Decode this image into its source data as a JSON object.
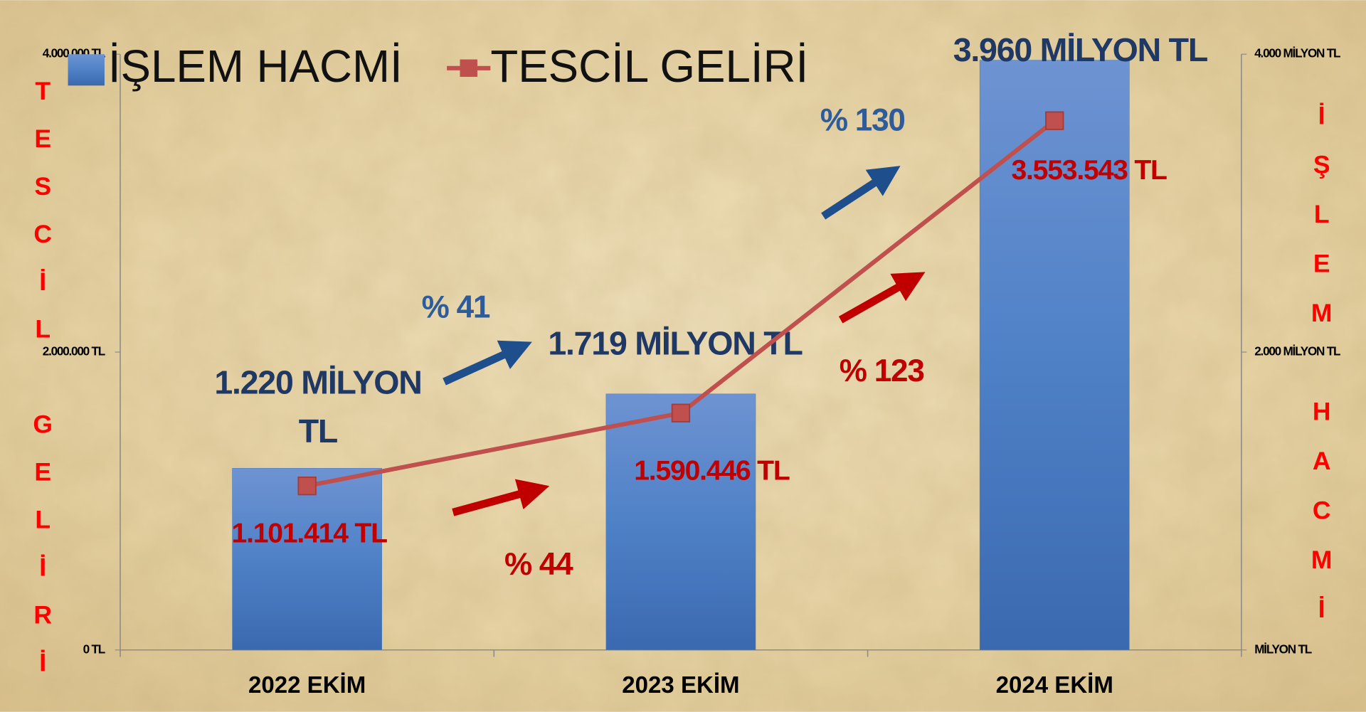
{
  "chart_data": {
    "type": "bar",
    "categories": [
      "2022 EKİM",
      "2023 EKİM",
      "2024 EKİM"
    ],
    "series": [
      {
        "name": "İŞLEM HACMİ",
        "type": "bar",
        "color": "#4f81bd",
        "axis": "y2",
        "values": [
          1220,
          1719,
          3960
        ],
        "value_labels": [
          "1.220 MİLYON TL",
          "1.719 MİLYON TL",
          "3.960 MİLYON TL"
        ]
      },
      {
        "name": "TESCİL GELİRİ",
        "type": "line",
        "color": "#c0504d",
        "values": [
          1101414,
          1590446,
          3553543
        ],
        "value_labels": [
          "1.101.414 TL",
          "1.590.446 TL",
          "3.553.543 TL"
        ]
      }
    ],
    "ylim": [
      0,
      4000000
    ],
    "yticks": [
      {
        "value": 0,
        "label": "0 TL"
      },
      {
        "value": 2000000,
        "label": "2.000.000 TL"
      },
      {
        "value": 4000000,
        "label": "4.000.000 TL"
      }
    ],
    "y2lim": [
      0,
      4000
    ],
    "y2ticks": [
      {
        "value": 0,
        "label": "MİLYON TL"
      },
      {
        "value": 2000,
        "label": "2.000 MİLYON TL"
      },
      {
        "value": 4000,
        "label": "4.000 MİLYON TL"
      }
    ],
    "y_label": "TESCİL GELİRİ",
    "y2_label": "İŞLEM HACMİ",
    "annotations": [
      "% 41",
      "% 130",
      "% 44",
      "% 123"
    ],
    "legend": "top-left"
  }
}
